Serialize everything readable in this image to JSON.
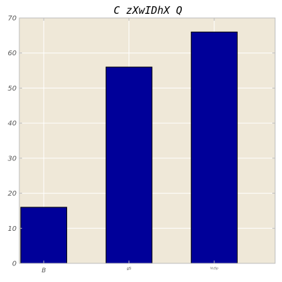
{
  "chart_data": {
    "type": "bar",
    "title": "C zXwIDhX Q",
    "xlabel": "",
    "ylabel": "",
    "categories": [
      "B",
      "gS",
      "VuSp"
    ],
    "values": [
      16,
      56,
      66
    ],
    "ylim": [
      0,
      70
    ],
    "yticks": [
      0,
      10,
      20,
      30,
      40,
      50,
      60,
      70
    ],
    "grid": true,
    "legend": "none",
    "colors": {
      "bar": "#000099",
      "bar_edge": "#000000",
      "plot_background": "#efe8d8",
      "grid": "#ffffff",
      "axis": "#bbbbbb"
    }
  }
}
